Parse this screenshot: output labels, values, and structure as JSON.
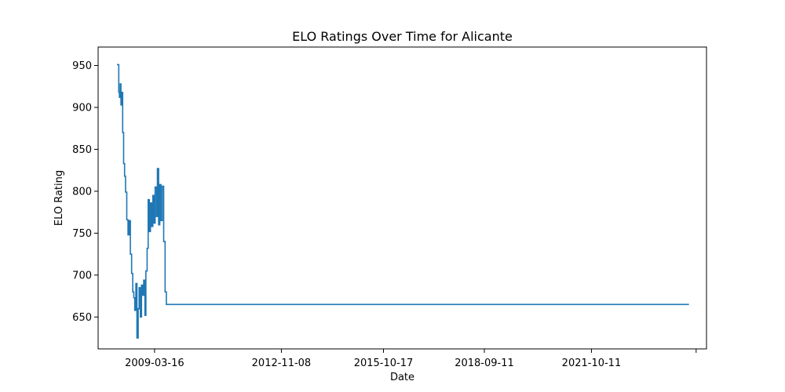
{
  "chart_data": {
    "type": "line",
    "title": "ELO Ratings Over Time for Alicante",
    "xlabel": "Date",
    "ylabel": "ELO Rating",
    "x_ticks": [
      "2009-03-16",
      "2012-11-08",
      "2015-10-17",
      "2018-09-11",
      "2021-10-11",
      ""
    ],
    "y_ticks": [
      "650",
      "700",
      "750",
      "800",
      "850",
      "900",
      "950"
    ],
    "xlim": [
      "2007-08-01",
      "2025-02-01"
    ],
    "ylim": [
      612,
      972
    ],
    "grid": false,
    "legend": "none",
    "series": [
      {
        "color": "#1f77b4",
        "points": [
          [
            "2008-02-15",
            951
          ],
          [
            "2008-02-26",
            951
          ],
          [
            "2008-03-05",
            918
          ],
          [
            "2008-03-12",
            912
          ],
          [
            "2008-03-20",
            928
          ],
          [
            "2008-03-28",
            903
          ],
          [
            "2008-04-05",
            918
          ],
          [
            "2008-04-15",
            870
          ],
          [
            "2008-04-25",
            833
          ],
          [
            "2008-05-05",
            818
          ],
          [
            "2008-05-15",
            799
          ],
          [
            "2008-05-28",
            766
          ],
          [
            "2008-06-10",
            748
          ],
          [
            "2008-06-22",
            765
          ],
          [
            "2008-07-05",
            725
          ],
          [
            "2008-07-18",
            702
          ],
          [
            "2008-07-30",
            680
          ],
          [
            "2008-08-10",
            673
          ],
          [
            "2008-08-20",
            658
          ],
          [
            "2008-09-01",
            690
          ],
          [
            "2008-09-12",
            625
          ],
          [
            "2008-09-25",
            660
          ],
          [
            "2008-10-05",
            685
          ],
          [
            "2008-10-18",
            650
          ],
          [
            "2008-10-30",
            688
          ],
          [
            "2008-11-10",
            676
          ],
          [
            "2008-11-22",
            694
          ],
          [
            "2008-12-05",
            652
          ],
          [
            "2008-12-15",
            705
          ],
          [
            "2008-12-28",
            732
          ],
          [
            "2009-01-08",
            790
          ],
          [
            "2009-01-20",
            752
          ],
          [
            "2009-02-01",
            786
          ],
          [
            "2009-02-14",
            758
          ],
          [
            "2009-02-26",
            795
          ],
          [
            "2009-03-10",
            762
          ],
          [
            "2009-03-22",
            805
          ],
          [
            "2009-04-05",
            770
          ],
          [
            "2009-04-15",
            827
          ],
          [
            "2009-04-28",
            760
          ],
          [
            "2009-05-10",
            808
          ],
          [
            "2009-05-22",
            765
          ],
          [
            "2009-06-05",
            806
          ],
          [
            "2009-06-20",
            740
          ],
          [
            "2009-07-05",
            680
          ],
          [
            "2009-07-18",
            665
          ],
          [
            "2024-08-01",
            665
          ]
        ]
      }
    ]
  }
}
